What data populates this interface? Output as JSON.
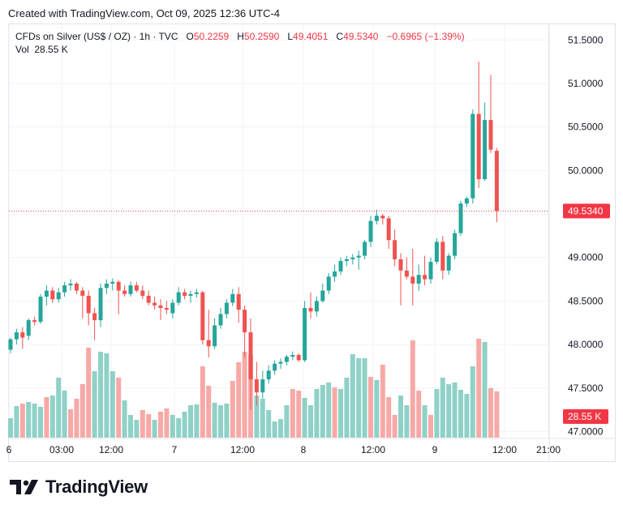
{
  "header": {
    "title": "Created with TradingView.com, Oct 09, 2025 12:36 UTC-4"
  },
  "legend": {
    "symbol": "CFDs on Silver (US$ / OZ) · 1h · TVC",
    "open_label": "O",
    "open": "50.2259",
    "high_label": "H",
    "high": "50.2590",
    "low_label": "L",
    "low": "49.4051",
    "close_label": "C",
    "close": "49.5340",
    "change": "−0.6965 (−1.39%)",
    "vol_label": "Vol",
    "vol": "28.55 K"
  },
  "brand": {
    "name": "TradingView",
    "icon": "tradingview-logo-icon"
  },
  "colors": {
    "up": "#26a69a",
    "down": "#ef5350",
    "vol_up": "#8fd1c7",
    "vol_down": "#f7a9a7",
    "price_tag": "#f23645",
    "grid": "#f0f3fa"
  },
  "chart_data": {
    "type": "candlestick",
    "title": "CFDs on Silver (US$ / OZ) · 1h · TVC",
    "interval": "1h",
    "y_axis": {
      "side": "right",
      "ylim": [
        46.93,
        51.68
      ],
      "ticks": [
        "51.5000",
        "51.0000",
        "50.5000",
        "50.0000",
        "49.5000",
        "49.0000",
        "48.5000",
        "48.0000",
        "47.5000",
        "47.0000"
      ]
    },
    "x_axis": {
      "labels": [
        "6",
        "03:00",
        "12:00",
        "7",
        "12:00",
        "8",
        "12:00",
        "9",
        "12:00",
        "21:00"
      ]
    },
    "last_price": {
      "value": 49.534,
      "label": "49.5340"
    },
    "last_volume": {
      "label": "28.55 K"
    },
    "grid": true,
    "candles": [
      {
        "o": 47.94,
        "h": 48.08,
        "l": 47.9,
        "c": 48.06
      },
      {
        "o": 48.06,
        "h": 48.18,
        "l": 48.0,
        "c": 48.14
      },
      {
        "o": 48.14,
        "h": 48.2,
        "l": 47.95,
        "c": 48.08
      },
      {
        "o": 48.1,
        "h": 48.3,
        "l": 48.05,
        "c": 48.28
      },
      {
        "o": 48.28,
        "h": 48.32,
        "l": 48.22,
        "c": 48.26
      },
      {
        "o": 48.26,
        "h": 48.58,
        "l": 48.24,
        "c": 48.55
      },
      {
        "o": 48.55,
        "h": 48.68,
        "l": 48.45,
        "c": 48.62
      },
      {
        "o": 48.62,
        "h": 48.66,
        "l": 48.48,
        "c": 48.52
      },
      {
        "o": 48.52,
        "h": 48.65,
        "l": 48.48,
        "c": 48.6
      },
      {
        "o": 48.6,
        "h": 48.72,
        "l": 48.55,
        "c": 48.68
      },
      {
        "o": 48.68,
        "h": 48.75,
        "l": 48.62,
        "c": 48.7
      },
      {
        "o": 48.7,
        "h": 48.72,
        "l": 48.58,
        "c": 48.62
      },
      {
        "o": 48.62,
        "h": 48.66,
        "l": 48.3,
        "c": 48.56
      },
      {
        "o": 48.56,
        "h": 48.62,
        "l": 48.22,
        "c": 48.36
      },
      {
        "o": 48.36,
        "h": 48.42,
        "l": 48.05,
        "c": 48.28
      },
      {
        "o": 48.28,
        "h": 48.7,
        "l": 48.2,
        "c": 48.65
      },
      {
        "o": 48.65,
        "h": 48.75,
        "l": 48.58,
        "c": 48.7
      },
      {
        "o": 48.7,
        "h": 48.76,
        "l": 48.62,
        "c": 48.72
      },
      {
        "o": 48.72,
        "h": 48.74,
        "l": 48.35,
        "c": 48.62
      },
      {
        "o": 48.62,
        "h": 48.68,
        "l": 48.55,
        "c": 48.58
      },
      {
        "o": 48.58,
        "h": 48.72,
        "l": 48.55,
        "c": 48.68
      },
      {
        "o": 48.68,
        "h": 48.72,
        "l": 48.6,
        "c": 48.62
      },
      {
        "o": 48.62,
        "h": 48.68,
        "l": 48.52,
        "c": 48.56
      },
      {
        "o": 48.56,
        "h": 48.62,
        "l": 48.45,
        "c": 48.48
      },
      {
        "o": 48.48,
        "h": 48.55,
        "l": 48.4,
        "c": 48.45
      },
      {
        "o": 48.45,
        "h": 48.52,
        "l": 48.28,
        "c": 48.42
      },
      {
        "o": 48.42,
        "h": 48.5,
        "l": 48.35,
        "c": 48.4
      },
      {
        "o": 48.36,
        "h": 48.52,
        "l": 48.3,
        "c": 48.48
      },
      {
        "o": 48.48,
        "h": 48.66,
        "l": 48.45,
        "c": 48.6
      },
      {
        "o": 48.6,
        "h": 48.64,
        "l": 48.52,
        "c": 48.56
      },
      {
        "o": 48.56,
        "h": 48.62,
        "l": 48.48,
        "c": 48.58
      },
      {
        "o": 48.58,
        "h": 48.64,
        "l": 48.54,
        "c": 48.6
      },
      {
        "o": 48.6,
        "h": 48.62,
        "l": 48.0,
        "c": 48.05
      },
      {
        "o": 48.05,
        "h": 48.4,
        "l": 47.85,
        "c": 47.98
      },
      {
        "o": 47.98,
        "h": 48.3,
        "l": 47.95,
        "c": 48.22
      },
      {
        "o": 48.22,
        "h": 48.42,
        "l": 48.18,
        "c": 48.35
      },
      {
        "o": 48.35,
        "h": 48.52,
        "l": 48.3,
        "c": 48.48
      },
      {
        "o": 48.48,
        "h": 48.64,
        "l": 48.44,
        "c": 48.58
      },
      {
        "o": 48.58,
        "h": 48.66,
        "l": 48.25,
        "c": 48.4
      },
      {
        "o": 48.4,
        "h": 48.45,
        "l": 47.85,
        "c": 48.14
      },
      {
        "o": 48.14,
        "h": 48.3,
        "l": 47.25,
        "c": 47.6
      },
      {
        "o": 47.6,
        "h": 47.8,
        "l": 47.3,
        "c": 47.45
      },
      {
        "o": 47.45,
        "h": 47.7,
        "l": 47.38,
        "c": 47.6
      },
      {
        "o": 47.6,
        "h": 47.76,
        "l": 47.55,
        "c": 47.7
      },
      {
        "o": 47.7,
        "h": 47.82,
        "l": 47.65,
        "c": 47.78
      },
      {
        "o": 47.78,
        "h": 47.84,
        "l": 47.72,
        "c": 47.8
      },
      {
        "o": 47.8,
        "h": 47.88,
        "l": 47.76,
        "c": 47.86
      },
      {
        "o": 47.86,
        "h": 47.92,
        "l": 47.82,
        "c": 47.88
      },
      {
        "o": 47.88,
        "h": 47.9,
        "l": 47.8,
        "c": 47.82
      },
      {
        "o": 47.82,
        "h": 48.5,
        "l": 47.8,
        "c": 48.42
      },
      {
        "o": 48.42,
        "h": 48.6,
        "l": 48.3,
        "c": 48.38
      },
      {
        "o": 48.38,
        "h": 48.55,
        "l": 48.32,
        "c": 48.5
      },
      {
        "o": 48.5,
        "h": 48.7,
        "l": 48.48,
        "c": 48.62
      },
      {
        "o": 48.62,
        "h": 48.82,
        "l": 48.58,
        "c": 48.78
      },
      {
        "o": 48.78,
        "h": 48.92,
        "l": 48.72,
        "c": 48.84
      },
      {
        "o": 48.84,
        "h": 49.0,
        "l": 48.8,
        "c": 48.96
      },
      {
        "o": 48.96,
        "h": 49.02,
        "l": 48.9,
        "c": 48.98
      },
      {
        "o": 48.98,
        "h": 49.04,
        "l": 48.92,
        "c": 49.0
      },
      {
        "o": 49.0,
        "h": 49.08,
        "l": 48.86,
        "c": 49.02
      },
      {
        "o": 49.02,
        "h": 49.2,
        "l": 48.98,
        "c": 49.18
      },
      {
        "o": 49.18,
        "h": 49.48,
        "l": 49.12,
        "c": 49.42
      },
      {
        "o": 49.42,
        "h": 49.55,
        "l": 49.38,
        "c": 49.48
      },
      {
        "o": 49.48,
        "h": 49.5,
        "l": 49.38,
        "c": 49.45
      },
      {
        "o": 49.45,
        "h": 49.48,
        "l": 49.1,
        "c": 49.2
      },
      {
        "o": 49.2,
        "h": 49.32,
        "l": 48.9,
        "c": 48.98
      },
      {
        "o": 48.98,
        "h": 49.05,
        "l": 48.45,
        "c": 48.85
      },
      {
        "o": 48.85,
        "h": 49.0,
        "l": 48.75,
        "c": 48.78
      },
      {
        "o": 48.78,
        "h": 49.1,
        "l": 48.45,
        "c": 48.7
      },
      {
        "o": 48.7,
        "h": 48.92,
        "l": 48.62,
        "c": 48.8
      },
      {
        "o": 48.8,
        "h": 49.02,
        "l": 48.68,
        "c": 48.75
      },
      {
        "o": 48.75,
        "h": 49.0,
        "l": 48.7,
        "c": 48.95
      },
      {
        "o": 48.95,
        "h": 49.22,
        "l": 48.92,
        "c": 49.18
      },
      {
        "o": 49.18,
        "h": 49.25,
        "l": 48.75,
        "c": 48.85
      },
      {
        "o": 48.85,
        "h": 49.05,
        "l": 48.8,
        "c": 49.02
      },
      {
        "o": 49.02,
        "h": 49.32,
        "l": 48.98,
        "c": 49.28
      },
      {
        "o": 49.28,
        "h": 49.65,
        "l": 49.25,
        "c": 49.62
      },
      {
        "o": 49.62,
        "h": 49.7,
        "l": 49.58,
        "c": 49.68
      },
      {
        "o": 49.68,
        "h": 50.7,
        "l": 49.62,
        "c": 50.65
      },
      {
        "o": 50.65,
        "h": 51.25,
        "l": 49.8,
        "c": 49.9
      },
      {
        "o": 49.9,
        "h": 50.78,
        "l": 49.88,
        "c": 50.58
      },
      {
        "o": 50.58,
        "h": 51.1,
        "l": 50.2,
        "c": 50.24
      },
      {
        "o": 50.2259,
        "h": 50.259,
        "l": 49.4051,
        "c": 49.534
      }
    ],
    "volume": [
      {
        "v": 12.0,
        "dir": "up"
      },
      {
        "v": 19.5,
        "dir": "up"
      },
      {
        "v": 21.0,
        "dir": "down"
      },
      {
        "v": 22.0,
        "dir": "up"
      },
      {
        "v": 21.0,
        "dir": "up"
      },
      {
        "v": 19.0,
        "dir": "up"
      },
      {
        "v": 25.0,
        "dir": "down"
      },
      {
        "v": 26.0,
        "dir": "up"
      },
      {
        "v": 37.0,
        "dir": "up"
      },
      {
        "v": 29.0,
        "dir": "up"
      },
      {
        "v": 17.5,
        "dir": "down"
      },
      {
        "v": 24.0,
        "dir": "down"
      },
      {
        "v": 33.0,
        "dir": "down"
      },
      {
        "v": 55.5,
        "dir": "down"
      },
      {
        "v": 41.0,
        "dir": "up"
      },
      {
        "v": 53.0,
        "dir": "up"
      },
      {
        "v": 52.0,
        "dir": "up"
      },
      {
        "v": 41.0,
        "dir": "up"
      },
      {
        "v": 37.0,
        "dir": "down"
      },
      {
        "v": 23.0,
        "dir": "up"
      },
      {
        "v": 14.0,
        "dir": "up"
      },
      {
        "v": 11.0,
        "dir": "up"
      },
      {
        "v": 17.0,
        "dir": "down"
      },
      {
        "v": 14.5,
        "dir": "down"
      },
      {
        "v": 11.0,
        "dir": "up"
      },
      {
        "v": 16.0,
        "dir": "down"
      },
      {
        "v": 18.0,
        "dir": "down"
      },
      {
        "v": 14.0,
        "dir": "up"
      },
      {
        "v": 12.0,
        "dir": "up"
      },
      {
        "v": 16.0,
        "dir": "up"
      },
      {
        "v": 20.0,
        "dir": "up"
      },
      {
        "v": 20.5,
        "dir": "up"
      },
      {
        "v": 44.0,
        "dir": "down"
      },
      {
        "v": 32.0,
        "dir": "down"
      },
      {
        "v": 21.5,
        "dir": "up"
      },
      {
        "v": 20.0,
        "dir": "up"
      },
      {
        "v": 21.0,
        "dir": "up"
      },
      {
        "v": 35.0,
        "dir": "down"
      },
      {
        "v": 46.5,
        "dir": "down"
      },
      {
        "v": 53.0,
        "dir": "down"
      },
      {
        "v": 51.0,
        "dir": "down"
      },
      {
        "v": 26.0,
        "dir": "up"
      },
      {
        "v": 24.0,
        "dir": "up"
      },
      {
        "v": 17.0,
        "dir": "up"
      },
      {
        "v": 10.0,
        "dir": "up"
      },
      {
        "v": 11.5,
        "dir": "up"
      },
      {
        "v": 20.0,
        "dir": "up"
      },
      {
        "v": 30.0,
        "dir": "down"
      },
      {
        "v": 29.0,
        "dir": "down"
      },
      {
        "v": 24.5,
        "dir": "up"
      },
      {
        "v": 20.0,
        "dir": "up"
      },
      {
        "v": 30.0,
        "dir": "up"
      },
      {
        "v": 32.5,
        "dir": "up"
      },
      {
        "v": 34.0,
        "dir": "up"
      },
      {
        "v": 31.0,
        "dir": "down"
      },
      {
        "v": 30.0,
        "dir": "up"
      },
      {
        "v": 37.0,
        "dir": "up"
      },
      {
        "v": 51.5,
        "dir": "up"
      },
      {
        "v": 49.0,
        "dir": "up"
      },
      {
        "v": 49.0,
        "dir": "up"
      },
      {
        "v": 37.5,
        "dir": "down"
      },
      {
        "v": 35.5,
        "dir": "up"
      },
      {
        "v": 45.0,
        "dir": "down"
      },
      {
        "v": 25.0,
        "dir": "down"
      },
      {
        "v": 14.0,
        "dir": "down"
      },
      {
        "v": 26.0,
        "dir": "up"
      },
      {
        "v": 20.0,
        "dir": "up"
      },
      {
        "v": 60.0,
        "dir": "down"
      },
      {
        "v": 29.0,
        "dir": "down"
      },
      {
        "v": 20.0,
        "dir": "up"
      },
      {
        "v": 14.0,
        "dir": "down"
      },
      {
        "v": 30.0,
        "dir": "up"
      },
      {
        "v": 37.0,
        "dir": "up"
      },
      {
        "v": 33.0,
        "dir": "up"
      },
      {
        "v": 34.0,
        "dir": "up"
      },
      {
        "v": 29.5,
        "dir": "up"
      },
      {
        "v": 27.0,
        "dir": "up"
      },
      {
        "v": 44.0,
        "dir": "up"
      },
      {
        "v": 61.0,
        "dir": "down"
      },
      {
        "v": 59.0,
        "dir": "up"
      },
      {
        "v": 30.5,
        "dir": "down"
      },
      {
        "v": 28.55,
        "dir": "down"
      }
    ]
  }
}
